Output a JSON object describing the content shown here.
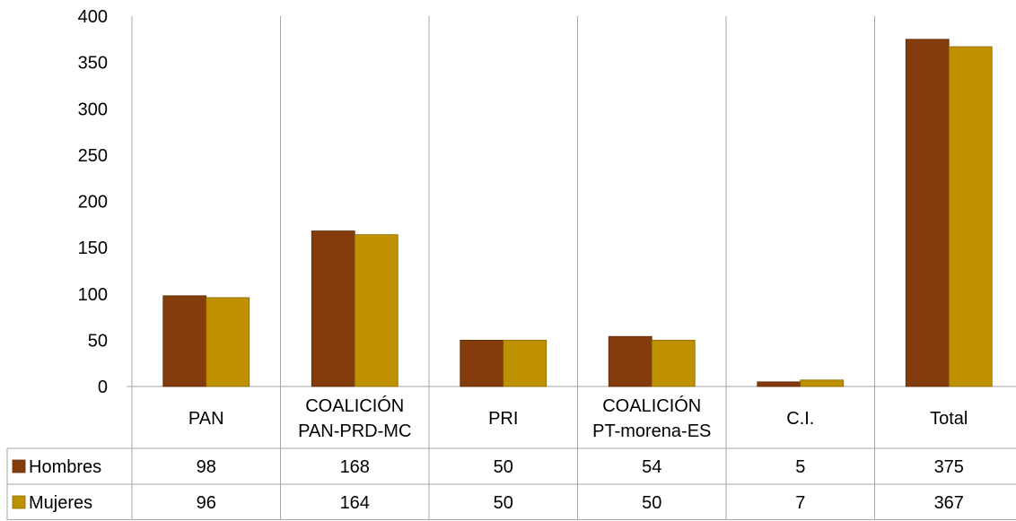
{
  "chart_data": {
    "type": "bar",
    "categories": [
      [
        "PAN"
      ],
      [
        "COALICIÓN",
        "PAN-PRD-MC"
      ],
      [
        "PRI"
      ],
      [
        "COALICIÓN",
        "PT-morena-ES"
      ],
      [
        "C.I."
      ],
      [
        "Total"
      ]
    ],
    "series": [
      {
        "name": "Hombres",
        "values": [
          98,
          168,
          50,
          54,
          5,
          375
        ],
        "color": "#843C0C"
      },
      {
        "name": "Mujeres",
        "values": [
          96,
          164,
          50,
          50,
          7,
          367
        ],
        "color": "#BF9000"
      }
    ],
    "ylim": [
      0,
      400
    ],
    "yticks": [
      0,
      50,
      100,
      150,
      200,
      250,
      300,
      350,
      400
    ],
    "title": "",
    "xlabel": "",
    "ylabel": "",
    "legend": "data-table",
    "grid": "vertical category dividers"
  }
}
